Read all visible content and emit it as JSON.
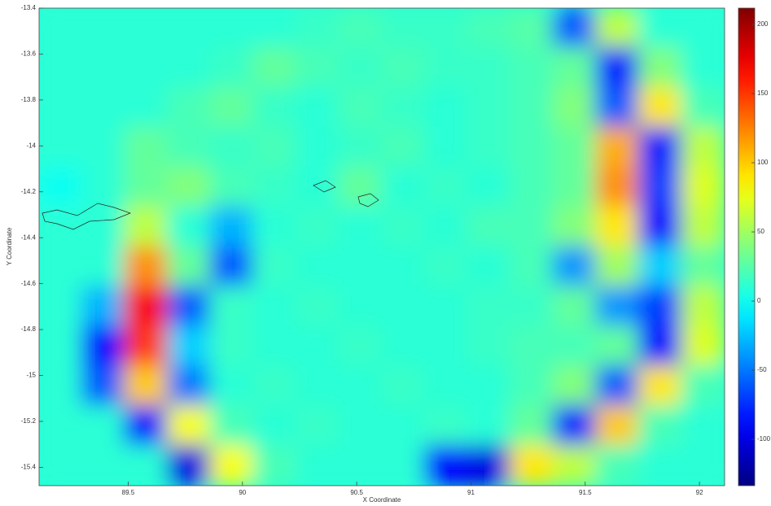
{
  "chart_data": {
    "type": "heatmap",
    "xlabel": "X Coordinate",
    "ylabel": "Y Coordinate",
    "xlim": [
      89.11,
      92.11
    ],
    "ylim": [
      -15.48,
      -13.4
    ],
    "xticks": [
      89.5,
      90,
      90.5,
      91,
      91.5,
      92
    ],
    "yticks": [
      -15.4,
      -15.2,
      -15,
      -14.8,
      -14.6,
      -14.4,
      -14.2,
      -14,
      -13.8,
      -13.6,
      -13.4
    ],
    "colormap": "jet",
    "clim": [
      -133.5,
      211.8
    ],
    "cticks": [
      -100,
      -50,
      0,
      50,
      100,
      150,
      200
    ],
    "z": [
      [
        10,
        10,
        10,
        10,
        10,
        10,
        15,
        20,
        15,
        15,
        20,
        25,
        -60,
        60,
        10,
        10
      ],
      [
        10,
        10,
        10,
        10,
        15,
        30,
        20,
        15,
        20,
        15,
        15,
        20,
        30,
        -80,
        40,
        10
      ],
      [
        10,
        10,
        10,
        20,
        30,
        15,
        10,
        20,
        15,
        10,
        15,
        20,
        40,
        -60,
        90,
        20
      ],
      [
        10,
        10,
        30,
        20,
        15,
        20,
        10,
        15,
        20,
        10,
        15,
        20,
        30,
        110,
        -80,
        60
      ],
      [
        0,
        10,
        30,
        40,
        20,
        15,
        10,
        30,
        10,
        15,
        10,
        20,
        30,
        120,
        -70,
        70
      ],
      [
        10,
        10,
        60,
        10,
        -30,
        10,
        15,
        10,
        15,
        10,
        20,
        20,
        40,
        90,
        -90,
        60
      ],
      [
        10,
        10,
        120,
        30,
        -60,
        15,
        10,
        10,
        10,
        15,
        10,
        20,
        -40,
        50,
        -20,
        30
      ],
      [
        10,
        -30,
        170,
        -60,
        15,
        10,
        15,
        10,
        10,
        10,
        15,
        15,
        30,
        -40,
        -70,
        60
      ],
      [
        10,
        -90,
        150,
        -20,
        15,
        10,
        10,
        15,
        10,
        10,
        15,
        20,
        20,
        30,
        -90,
        70
      ],
      [
        10,
        -60,
        100,
        -50,
        10,
        15,
        10,
        10,
        15,
        10,
        10,
        20,
        40,
        -60,
        90,
        20
      ],
      [
        10,
        10,
        -90,
        80,
        20,
        10,
        15,
        10,
        10,
        15,
        10,
        30,
        -80,
        100,
        20,
        10
      ],
      [
        10,
        10,
        10,
        -100,
        80,
        20,
        10,
        10,
        10,
        -90,
        -100,
        90,
        60,
        20,
        10,
        10
      ]
    ]
  }
}
